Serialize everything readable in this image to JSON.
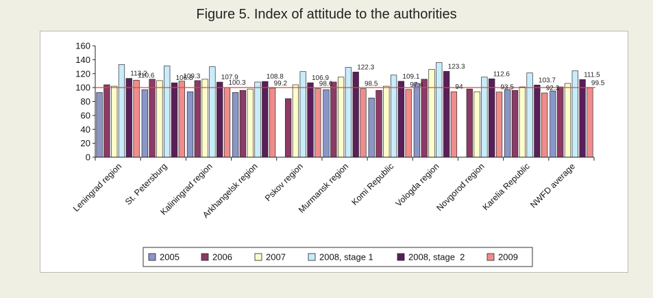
{
  "title": "Figure 5. Index of attitude to the authorities",
  "colors": {
    "page_bg": "#f0efe4",
    "ref_line": "#e4463a",
    "axis": "#222222",
    "series": [
      "#8a96c8",
      "#8c3a66",
      "#fdfccb",
      "#c8ecfa",
      "#5a1f5a",
      "#f08c8c"
    ]
  },
  "chart_data": {
    "type": "bar",
    "title": "Figure 5. Index of attitude to the authorities",
    "xlabel": "",
    "ylabel": "",
    "ylim": [
      0,
      160
    ],
    "yticks": [
      0,
      20,
      40,
      60,
      80,
      100,
      120,
      140,
      160
    ],
    "reference_line": 100,
    "grid": false,
    "legend_position": "bottom",
    "categories": [
      "Leningrad region",
      "St. Petersburg",
      "Kaliningrad region",
      "Arkhangelsk region",
      "Pskov region",
      "Murmansk region",
      "Komi Republic",
      "Vologda region",
      "Novgorod region",
      "Karelia Republic",
      "NWFD average"
    ],
    "series": [
      {
        "name": "2005",
        "values": [
          93,
          97,
          94,
          93,
          null,
          97,
          85,
          106,
          null,
          97,
          95
        ]
      },
      {
        "name": "2006",
        "values": [
          104,
          112,
          110,
          96,
          84,
          108,
          96,
          112,
          98,
          96,
          101
        ]
      },
      {
        "name": "2007",
        "values": [
          102,
          110,
          112,
          98,
          104,
          115,
          102,
          126,
          94,
          101,
          106
        ]
      },
      {
        "name": "2008, stage 1",
        "values": [
          133,
          131,
          130,
          108,
          123,
          129,
          118,
          136,
          115,
          121,
          124
        ]
      },
      {
        "name": "2008, stage  2",
        "values": [
          113.2,
          106.8,
          107.9,
          108.8,
          106.9,
          122.3,
          109.1,
          123.3,
          112.6,
          103.7,
          111.5
        ]
      },
      {
        "name": "2009",
        "values": [
          110.6,
          109.3,
          100.3,
          99.2,
          98.6,
          98.5,
          97.4,
          94,
          93.5,
          92.3,
          99.5
        ]
      }
    ],
    "data_labels": [
      {
        "text": "113.2",
        "category": 0,
        "series": 4,
        "value": 113.2
      },
      {
        "text": "110.6",
        "category": 0,
        "series": 5,
        "value": 110.6
      },
      {
        "text": "106.8",
        "category": 1,
        "series": 4,
        "value": 106.8
      },
      {
        "text": "109.3",
        "category": 1,
        "series": 5,
        "value": 109.3
      },
      {
        "text": "107.9",
        "category": 2,
        "series": 4,
        "value": 107.9
      },
      {
        "text": "100.3",
        "category": 2,
        "series": 5,
        "value": 100.3
      },
      {
        "text": "108.8",
        "category": 3,
        "series": 4,
        "value": 108.8
      },
      {
        "text": "99.2",
        "category": 3,
        "series": 5,
        "value": 99.2
      },
      {
        "text": "106.9",
        "category": 4,
        "series": 4,
        "value": 106.9
      },
      {
        "text": "98.6",
        "category": 4,
        "series": 5,
        "value": 98.6
      },
      {
        "text": "122.3",
        "category": 5,
        "series": 4,
        "value": 122.3
      },
      {
        "text": "98.5",
        "category": 5,
        "series": 5,
        "value": 98.5
      },
      {
        "text": "109.1",
        "category": 6,
        "series": 4,
        "value": 109.1
      },
      {
        "text": "97.4",
        "category": 6,
        "series": 5,
        "value": 97.4
      },
      {
        "text": "123.3",
        "category": 7,
        "series": 4,
        "value": 123.3
      },
      {
        "text": "94",
        "category": 7,
        "series": 5,
        "value": 94
      },
      {
        "text": "112.6",
        "category": 8,
        "series": 4,
        "value": 112.6
      },
      {
        "text": "93.5",
        "category": 8,
        "series": 5,
        "value": 93.5
      },
      {
        "text": "103.7",
        "category": 9,
        "series": 4,
        "value": 103.7
      },
      {
        "text": "92.3",
        "category": 9,
        "series": 5,
        "value": 92.3
      },
      {
        "text": "111.5",
        "category": 10,
        "series": 4,
        "value": 111.5
      },
      {
        "text": "99.5",
        "category": 10,
        "series": 5,
        "value": 99.5
      }
    ]
  }
}
